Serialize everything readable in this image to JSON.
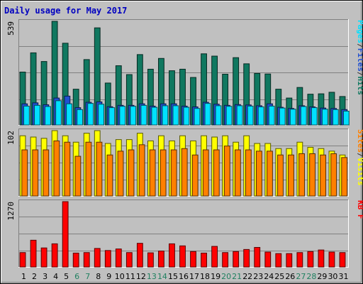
{
  "chart_data": {
    "title": "Daily usage for May 2017",
    "type": "bar",
    "x": [
      "1",
      "2",
      "3",
      "4",
      "5",
      "6",
      "7",
      "8",
      "9",
      "10",
      "11",
      "12",
      "13",
      "14",
      "15",
      "16",
      "17",
      "18",
      "19",
      "20",
      "21",
      "22",
      "23",
      "24",
      "25",
      "26",
      "27",
      "28",
      "29",
      "30",
      "31"
    ],
    "weekend_days": [
      "6",
      "7",
      "13",
      "14",
      "20",
      "21",
      "27",
      "28"
    ],
    "panels": [
      {
        "name": "top",
        "max_label": "539",
        "ylim": [
          0,
          539
        ],
        "grid": true,
        "axis_label_parts": [
          {
            "text": "Pages",
            "color": "#00e0ff"
          },
          {
            "text": "/",
            "color": "#333333"
          },
          {
            "text": "Files",
            "color": "#2050d0"
          },
          {
            "text": "/",
            "color": "#333333"
          },
          {
            "text": "Hits",
            "color": "#107860"
          }
        ],
        "series": [
          {
            "name": "Hits",
            "color": "#107860",
            "values": [
              275,
              375,
              330,
              539,
              425,
              186,
              340,
              505,
              218,
              308,
              262,
              366,
              290,
              346,
              282,
              290,
              247,
              370,
              358,
              264,
              350,
              318,
              268,
              265,
              186,
              140,
              195,
              160,
              162,
              170,
              148
            ]
          },
          {
            "name": "Files",
            "color": "#2050d0",
            "values": [
              110,
              115,
              105,
              140,
              150,
              90,
              118,
              120,
              95,
              102,
              102,
              110,
              98,
              110,
              110,
              98,
              94,
              118,
              108,
              102,
              106,
              104,
              100,
              110,
              92,
              86,
              100,
              94,
              88,
              86,
              80
            ]
          },
          {
            "name": "Pages",
            "color": "#00e0ff",
            "values": [
              98,
              102,
              96,
              126,
              110,
              80,
              112,
              108,
              90,
              97,
              97,
              102,
              92,
              100,
              100,
              92,
              86,
              112,
              100,
              97,
              100,
              98,
              94,
              98,
              88,
              82,
              96,
              90,
              82,
              80,
              72
            ]
          }
        ]
      },
      {
        "name": "middle",
        "max_label": "102",
        "ylim": [
          0,
          102
        ],
        "grid": true,
        "axis_label_parts": [
          {
            "text": "Sites",
            "color": "#ff8000"
          },
          {
            "text": "/",
            "color": "#333333"
          },
          {
            "text": "Visits",
            "color": "#ffff00"
          }
        ],
        "series": [
          {
            "name": "Visits",
            "color": "#ffff00",
            "values": [
              94,
              92,
              90,
              102,
              94,
              84,
              98,
              102,
              82,
              88,
              88,
              98,
              86,
              94,
              86,
              94,
              86,
              94,
              92,
              94,
              84,
              94,
              82,
              82,
              74,
              74,
              84,
              76,
              74,
              70,
              64
            ]
          },
          {
            "name": "Sites",
            "color": "#ff8000",
            "values": [
              72,
              72,
              72,
              86,
              84,
              62,
              84,
              84,
              64,
              70,
              72,
              80,
              72,
              72,
              72,
              74,
              64,
              72,
              72,
              78,
              72,
              72,
              70,
              70,
              64,
              64,
              66,
              66,
              64,
              66,
              60
            ]
          }
        ]
      },
      {
        "name": "bottom",
        "max_label": "1270",
        "ylim": [
          0,
          1270
        ],
        "grid": true,
        "axis_label_parts": [
          {
            "text": "KB F",
            "color": "#ff0000"
          }
        ],
        "series": [
          {
            "name": "KB F",
            "color": "#ff0000",
            "values": [
              280,
              520,
              370,
              450,
              1270,
              270,
              280,
              360,
              320,
              350,
              280,
              460,
              275,
              310,
              450,
              410,
              300,
              270,
              400,
              280,
              300,
              340,
              380,
              290,
              260,
              260,
              280,
              300,
              330,
              290,
              280
            ]
          }
        ]
      }
    ]
  },
  "colors": {
    "background": "#c0c0c0",
    "plot_background": "#c0c0c0",
    "title": "#0000c0",
    "tick_weekday": "#000000",
    "tick_weekend": "#208060",
    "grid": "#808080"
  }
}
